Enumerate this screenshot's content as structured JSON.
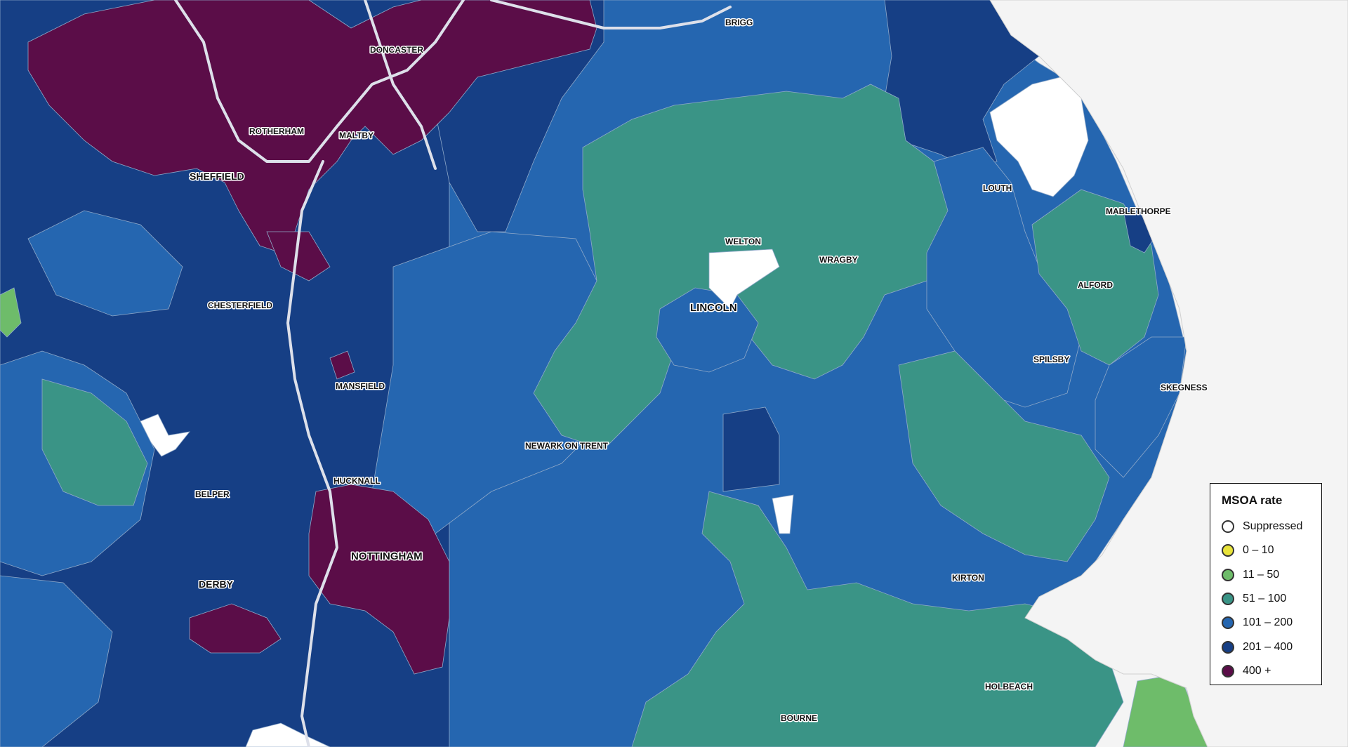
{
  "colors": {
    "sea": "#f4f4f4",
    "water_edge": "#d9d9d9",
    "boundary": "#9fb5cf",
    "motorway": "#dde0ea",
    "band_suppressed": "#ffffff",
    "band_0_10": "#e8e33a",
    "band_11_50": "#6ebc6a",
    "band_51_100": "#3a9486",
    "band_101_200": "#2566b0",
    "band_201_400": "#163f85",
    "band_400_plus": "#5b0d48"
  },
  "legend": {
    "title": "MSOA rate",
    "items": [
      {
        "label": "Suppressed",
        "color_key": "band_suppressed"
      },
      {
        "label": "0 – 10",
        "color_key": "band_0_10"
      },
      {
        "label": "11 – 50",
        "color_key": "band_11_50"
      },
      {
        "label": "51 – 100",
        "color_key": "band_51_100"
      },
      {
        "label": "101 – 200",
        "color_key": "band_101_200"
      },
      {
        "label": "201 – 400",
        "color_key": "band_201_400"
      },
      {
        "label": "400 +",
        "color_key": "band_400_plus"
      }
    ]
  },
  "places": {
    "brigg": "BRIGG",
    "doncaster": "DONCASTER",
    "rotherham": "ROTHERHAM",
    "maltby": "MALTBY",
    "sheffield": "SHEFFIELD",
    "louth": "LOUTH",
    "mablethorpe": "MABLETHORPE",
    "welton": "WELTON",
    "wragby": "WRAGBY",
    "lincoln": "LINCOLN",
    "alford": "ALFORD",
    "chesterfield": "CHESTERFIELD",
    "spilsby": "SPILSBY",
    "mansfield": "MANSFIELD",
    "skegness": "SKEGNESS",
    "newark": "NEWARK ON TRENT",
    "hucknall": "HUCKNALL",
    "belper": "BELPER",
    "nottingham": "NOTTINGHAM",
    "derby": "DERBY",
    "kirton": "KIRTON",
    "holbeach": "HOLBEACH",
    "bourne": "BOURNE"
  }
}
